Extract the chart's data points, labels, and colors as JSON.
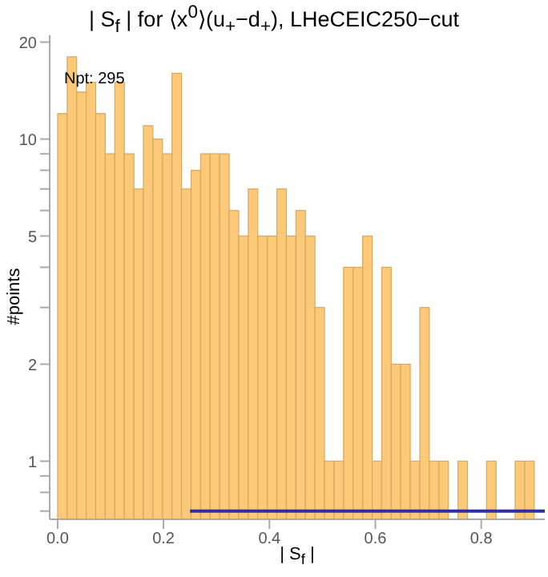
{
  "chart_data": {
    "type": "histogram",
    "title": "| S$_{f}$ | for ⟨x$^{0}$⟩(u$_{+}$−d$_{+}$), LHeCEIC250−cut",
    "xlabel": "| S$_{f}$ |",
    "ylabel": "#points",
    "annotations": [
      "Npt: 295"
    ],
    "bins": [
      0,
      0.018,
      0.036,
      0.054,
      0.072,
      0.09,
      0.108,
      0.126,
      0.144,
      0.162,
      0.18,
      0.198,
      0.216,
      0.234,
      0.252,
      0.27,
      0.288,
      0.306,
      0.324,
      0.342,
      0.36,
      0.378,
      0.396,
      0.414,
      0.432,
      0.45,
      0.468,
      0.486,
      0.504,
      0.522,
      0.54,
      0.558,
      0.576,
      0.594,
      0.612,
      0.63,
      0.648,
      0.666,
      0.684,
      0.702,
      0.72,
      0.738,
      0.756,
      0.774,
      0.792,
      0.81,
      0.828,
      0.846,
      0.864,
      0.882,
      0.9
    ],
    "values": [
      12,
      18,
      14,
      15,
      12,
      9,
      15,
      9,
      7,
      11,
      10,
      9,
      16,
      7,
      8,
      9,
      9,
      9,
      6,
      5,
      7,
      5,
      5,
      7,
      5,
      6,
      5,
      3,
      1,
      1,
      4,
      4,
      5,
      1,
      4,
      2,
      2,
      1,
      3,
      1,
      1,
      null,
      1,
      null,
      null,
      1,
      null,
      null,
      1,
      1
    ],
    "color": "#fbc978",
    "series": [
      {
        "type": "line",
        "color": "#2f2f9e",
        "x": [
          0.25,
          0.92
        ],
        "values": [
          0.7,
          0.7
        ]
      }
    ],
    "log": "y",
    "grid": false,
    "xlim": [
      -0.015,
      0.92
    ],
    "xticks": [
      {
        "value": 0,
        "label": "0.0"
      },
      {
        "value": 0.2,
        "label": "0.2"
      },
      {
        "value": 0.4,
        "label": "0.4"
      },
      {
        "value": 0.6,
        "label": "0.6"
      },
      {
        "value": 0.8,
        "label": "0.8"
      }
    ],
    "ylim": [
      0.66,
      21
    ],
    "yticks": [
      {
        "value": 0.7,
        "label": null
      },
      {
        "value": 0.8,
        "label": null
      },
      {
        "value": 0.9,
        "label": null
      },
      1,
      2,
      {
        "value": 3,
        "label": null
      },
      {
        "value": 4,
        "label": null
      },
      5,
      {
        "value": 6,
        "label": null
      },
      {
        "value": 7,
        "label": null
      },
      {
        "value": 8,
        "label": null
      },
      {
        "value": 9,
        "label": null
      },
      10,
      20
    ]
  }
}
